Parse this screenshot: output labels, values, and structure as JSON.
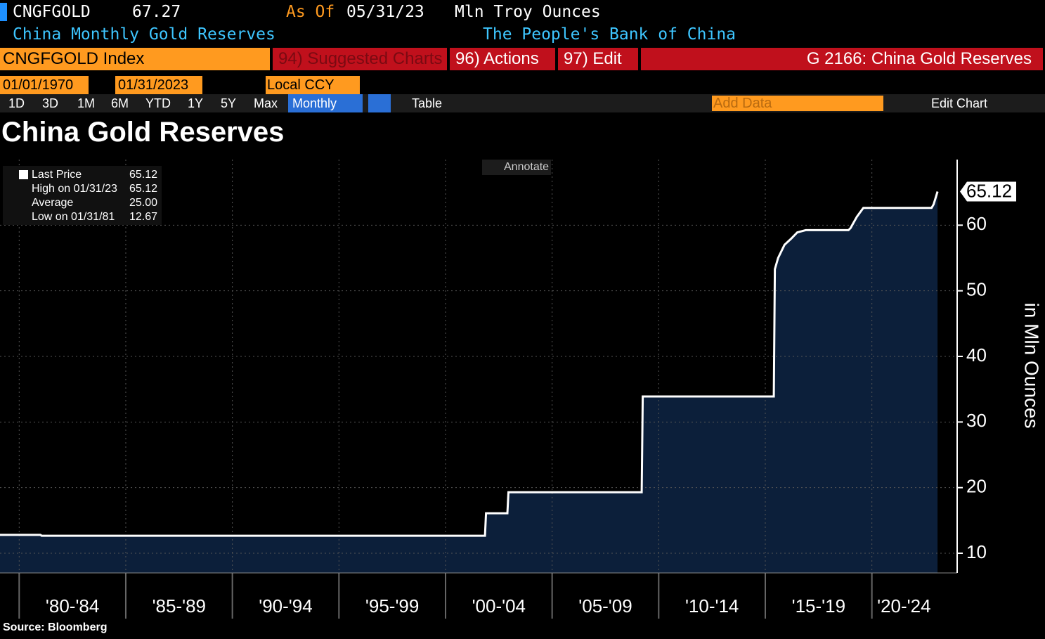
{
  "header": {
    "ticker": "CNGFGOLD",
    "price": "67.27",
    "as_of_label": "As Of",
    "as_of_date": "05/31/23",
    "units": "Mln Troy Ounces",
    "description": "China Monthly Gold Reserves",
    "source_org": "The People's Bank of China"
  },
  "toolbar": {
    "index": "CNGFGOLD Index",
    "suggested": "94) Suggested Charts",
    "actions": "96) Actions",
    "edit": "97) Edit",
    "page": "G 2166: China Gold Reserves",
    "start_date": "01/01/1970",
    "end_date": "01/31/2023",
    "currency": "Local CCY",
    "ranges": [
      "1D",
      "3D",
      "1M",
      "6M",
      "YTD",
      "1Y",
      "5Y",
      "Max"
    ],
    "frequency": "Monthly",
    "table": "Table",
    "add_data": "Add Data",
    "edit_chart": "Edit Chart"
  },
  "chart_data": {
    "type": "line",
    "title": "China Gold Reserves",
    "y_label": "in Mln Ounces",
    "source": "Source: Bloomberg",
    "annotate": "Annotate",
    "x": [
      1979.1,
      1981.0,
      1981.05,
      2001.85,
      2001.9,
      2002.9,
      2002.95,
      2009.2,
      2009.25,
      2015.4,
      2015.45,
      2015.6,
      2015.9,
      2016.2,
      2016.5,
      2016.9,
      2018.9,
      2019.0,
      2019.3,
      2019.6,
      2022.8,
      2022.9,
      2023.08
    ],
    "values": [
      12.8,
      12.8,
      12.67,
      12.67,
      16.1,
      16.1,
      19.29,
      19.29,
      33.89,
      33.89,
      53.3,
      55.0,
      57.0,
      57.9,
      58.9,
      59.24,
      59.24,
      59.56,
      61.3,
      62.64,
      62.64,
      63.2,
      65.12
    ],
    "color": "#ffffff",
    "fill": "#0c1f3a",
    "xlim": [
      1979.1,
      2024.0
    ],
    "ylim": [
      7,
      70
    ],
    "xticks": [
      {
        "value": 1980,
        "label": "'80-'84"
      },
      {
        "value": 1985,
        "label": "'85-'89"
      },
      {
        "value": 1990,
        "label": "'90-'94"
      },
      {
        "value": 1995,
        "label": "'95-'99"
      },
      {
        "value": 2000,
        "label": "'00-'04"
      },
      {
        "value": 2005,
        "label": "'05-'09"
      },
      {
        "value": 2010,
        "label": "'10-'14"
      },
      {
        "value": 2015,
        "label": "'15-'19"
      },
      {
        "value": 2020,
        "label": "'20-'24"
      }
    ],
    "yticks": [
      10,
      20,
      30,
      40,
      50,
      60
    ],
    "grid": true,
    "legend": [
      {
        "label": "Last Price",
        "value": "65.12"
      },
      {
        "label": "High on 01/31/23",
        "value": "65.12"
      },
      {
        "label": "Average",
        "value": "25.00"
      },
      {
        "label": "Low on 01/31/81",
        "value": "12.67"
      }
    ]
  }
}
